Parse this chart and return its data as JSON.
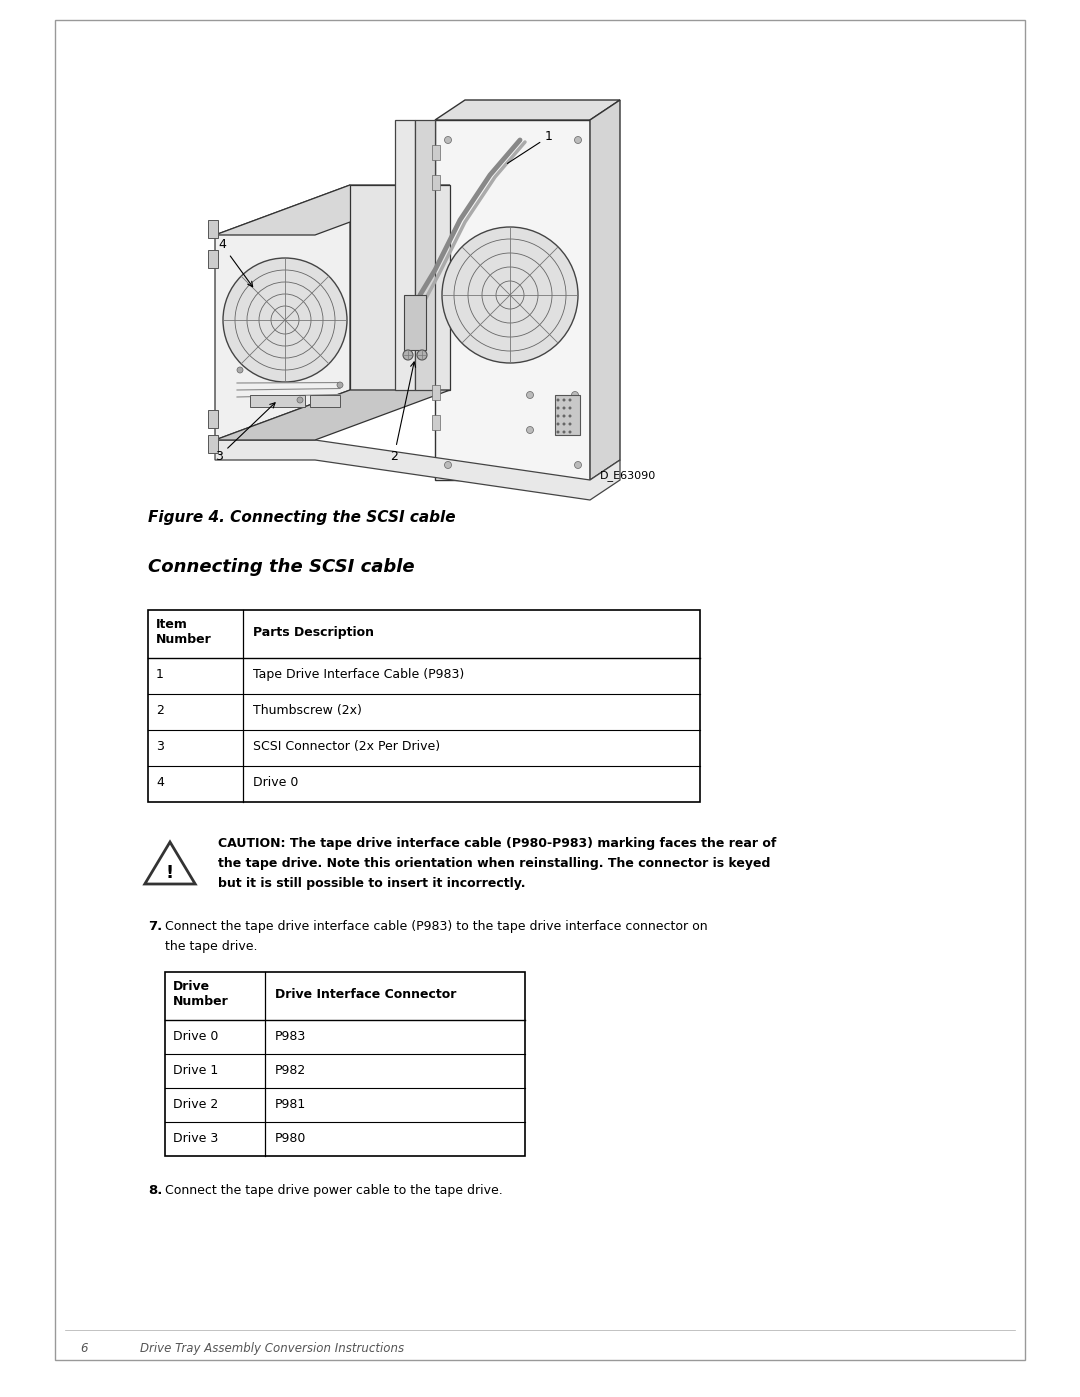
{
  "page_bg": "#ffffff",
  "border_color": "#999999",
  "figure_caption": "Figure 4. Connecting the SCSI cable",
  "section_title": "Connecting the SCSI cable",
  "diagram_label": "D_E63090",
  "table1_headers": [
    "Item\nNumber",
    "Parts Description"
  ],
  "table1_rows": [
    [
      "1",
      "Tape Drive Interface Cable (P983)"
    ],
    [
      "2",
      "Thumbscrew (2x)"
    ],
    [
      "3",
      "SCSI Connector (2x Per Drive)"
    ],
    [
      "4",
      "Drive 0"
    ]
  ],
  "caution_text_bold": "CAUTION: The tape drive interface cable (P980-P983) marking faces the rear of the tape drive. Note this orientation when reinstalling. The connector is keyed but it is still possible to insert it incorrectly.",
  "step7_label": "7.",
  "step7_text": "Connect the tape drive interface cable (P983) to the tape drive interface connector on the tape drive.",
  "table2_headers": [
    "Drive\nNumber",
    "Drive Interface Connector"
  ],
  "table2_rows": [
    [
      "Drive 0",
      "P983"
    ],
    [
      "Drive 1",
      "P982"
    ],
    [
      "Drive 2",
      "P981"
    ],
    [
      "Drive 3",
      "P980"
    ]
  ],
  "step8_label": "8.",
  "step8_text": "Connect the tape drive power cable to the tape drive.",
  "footer_page": "6",
  "footer_text": "Drive Tray Assembly Conversion Instructions",
  "text_color": "#000000",
  "table_border_color": "#000000"
}
